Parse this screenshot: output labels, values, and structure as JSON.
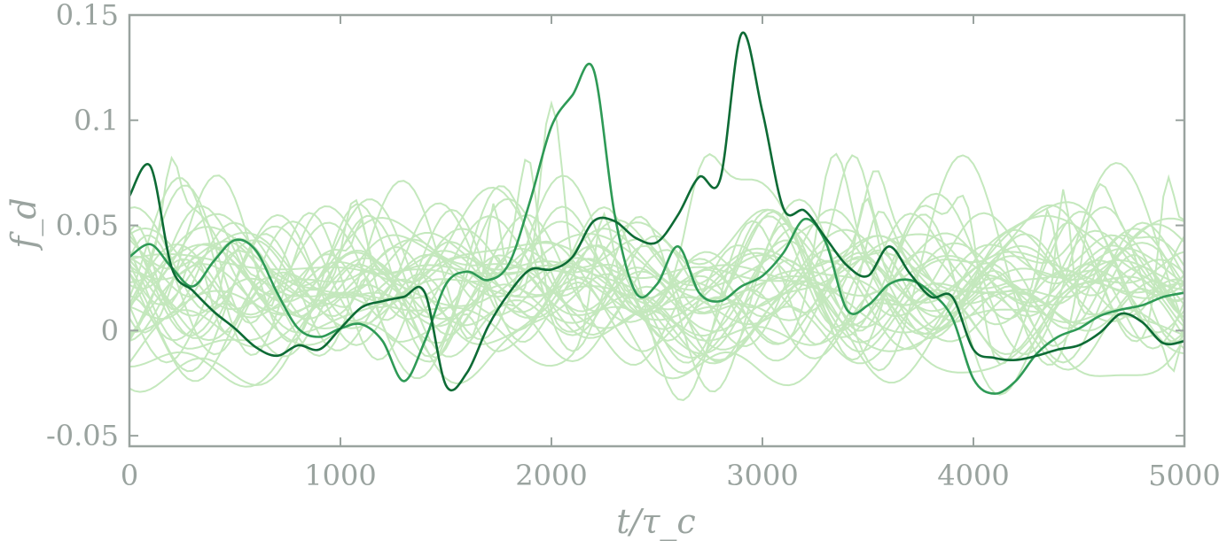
{
  "chart_data": {
    "type": "line",
    "title": "",
    "xlabel": "t/τ_c",
    "ylabel": "f_d",
    "xlim": [
      0,
      5000
    ],
    "ylim": [
      -0.055,
      0.15
    ],
    "x_ticks": [
      0,
      1000,
      2000,
      3000,
      4000,
      5000
    ],
    "x_tick_labels": [
      "0",
      "1000",
      "2000",
      "3000",
      "4000",
      "5000"
    ],
    "y_ticks": [
      -0.05,
      0,
      0.05,
      0.1,
      0.15
    ],
    "y_tick_labels": [
      "-0.05",
      "0",
      "0.05",
      "0.1",
      "0.15"
    ],
    "grid": false,
    "colors": {
      "background_series": "#c4e8bd",
      "highlight_1": "#2e9a56",
      "highlight_2": "#0d6b35",
      "axes": "#9aa39f"
    },
    "x": [
      0,
      100,
      200,
      300,
      400,
      500,
      600,
      700,
      800,
      900,
      1000,
      1100,
      1200,
      1300,
      1400,
      1500,
      1600,
      1700,
      1800,
      1900,
      2000,
      2100,
      2200,
      2300,
      2400,
      2500,
      2600,
      2700,
      2800,
      2900,
      3000,
      3100,
      3200,
      3300,
      3400,
      3500,
      3600,
      3700,
      3800,
      3900,
      4000,
      4100,
      4200,
      4300,
      4400,
      4500,
      4600,
      4700,
      4800,
      4900,
      5000
    ],
    "series": [
      {
        "role": "highlight",
        "values": [
          0.035,
          0.041,
          0.03,
          0.021,
          0.033,
          0.043,
          0.038,
          0.018,
          0.001,
          -0.003,
          0.001,
          0.003,
          -0.005,
          -0.024,
          -0.005,
          0.022,
          0.028,
          0.024,
          0.032,
          0.062,
          0.097,
          0.112,
          0.124,
          0.055,
          0.018,
          0.022,
          0.04,
          0.018,
          0.014,
          0.021,
          0.026,
          0.037,
          0.053,
          0.042,
          0.01,
          0.012,
          0.022,
          0.024,
          0.018,
          0.006,
          -0.023,
          -0.03,
          -0.024,
          -0.011,
          -0.003,
          0.001,
          0.007,
          0.01,
          0.012,
          0.016,
          0.018
        ]
      },
      {
        "role": "highlight",
        "values": [
          0.064,
          0.078,
          0.03,
          0.019,
          0.009,
          0.001,
          -0.008,
          -0.012,
          -0.007,
          -0.009,
          0.001,
          0.011,
          0.014,
          0.016,
          0.018,
          -0.026,
          -0.02,
          0.002,
          0.018,
          0.029,
          0.029,
          0.035,
          0.052,
          0.052,
          0.044,
          0.042,
          0.055,
          0.073,
          0.072,
          0.141,
          0.104,
          0.058,
          0.057,
          0.044,
          0.031,
          0.026,
          0.04,
          0.027,
          0.016,
          0.016,
          -0.009,
          -0.013,
          -0.014,
          -0.012,
          -0.009,
          -0.007,
          -0.001,
          0.008,
          0.004,
          -0.006,
          -0.005
        ]
      }
    ]
  }
}
